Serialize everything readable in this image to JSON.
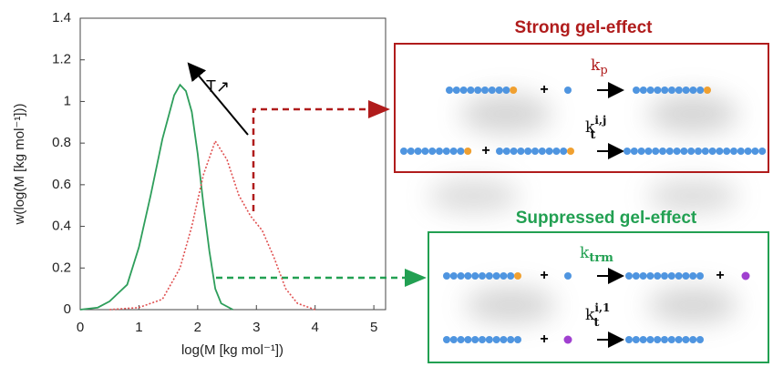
{
  "chart_data": {
    "type": "line",
    "xlabel": "log(M [kg mol⁻¹])",
    "ylabel": "w(log(M [kg mol⁻¹]))",
    "xlim": [
      0,
      5.2
    ],
    "ylim": [
      0,
      1.4
    ],
    "xticks": [
      0,
      1,
      2,
      3,
      4,
      5
    ],
    "yticks": [
      0,
      0.2,
      0.4,
      0.6,
      0.8,
      1,
      1.2,
      1.4
    ],
    "series": [
      {
        "color": "#2e9e5b",
        "style": "solid",
        "x": [
          0,
          0.3,
          0.5,
          0.8,
          1.0,
          1.2,
          1.4,
          1.6,
          1.7,
          1.8,
          1.9,
          2.0,
          2.1,
          2.2,
          2.3,
          2.4,
          2.6
        ],
        "values": [
          0,
          0.01,
          0.04,
          0.12,
          0.3,
          0.55,
          0.82,
          1.03,
          1.08,
          1.05,
          0.95,
          0.75,
          0.5,
          0.28,
          0.1,
          0.03,
          0
        ]
      },
      {
        "color": "#e05050",
        "style": "dotted",
        "x": [
          0.5,
          1.0,
          1.4,
          1.7,
          1.9,
          2.1,
          2.3,
          2.5,
          2.7,
          2.9,
          3.1,
          3.3,
          3.5,
          3.7,
          4.0
        ],
        "values": [
          0,
          0.01,
          0.05,
          0.2,
          0.4,
          0.65,
          0.81,
          0.72,
          0.55,
          0.45,
          0.38,
          0.25,
          0.1,
          0.03,
          0
        ]
      }
    ],
    "annotation": "T↗"
  },
  "panels": [
    {
      "title": "Strong gel-effect",
      "color": "#b01c1c",
      "reactions": [
        {
          "plus": "+",
          "k": "k",
          "sub": "p",
          "sup": null,
          "k_color": "#b01c1c"
        },
        {
          "plus": "+",
          "k": "k",
          "sub": "t",
          "sup": "i,j",
          "k_color": "#111"
        }
      ]
    },
    {
      "title": "Suppressed gel-effect",
      "color": "#22a052",
      "reactions": [
        {
          "plus": "+",
          "plus2": "+",
          "k": "k",
          "sub": "trm",
          "sup": null,
          "k_color": "#22a052"
        },
        {
          "plus": "+",
          "k": "k",
          "sub": "t",
          "sup": "i,1",
          "k_color": "#111"
        }
      ]
    }
  ]
}
